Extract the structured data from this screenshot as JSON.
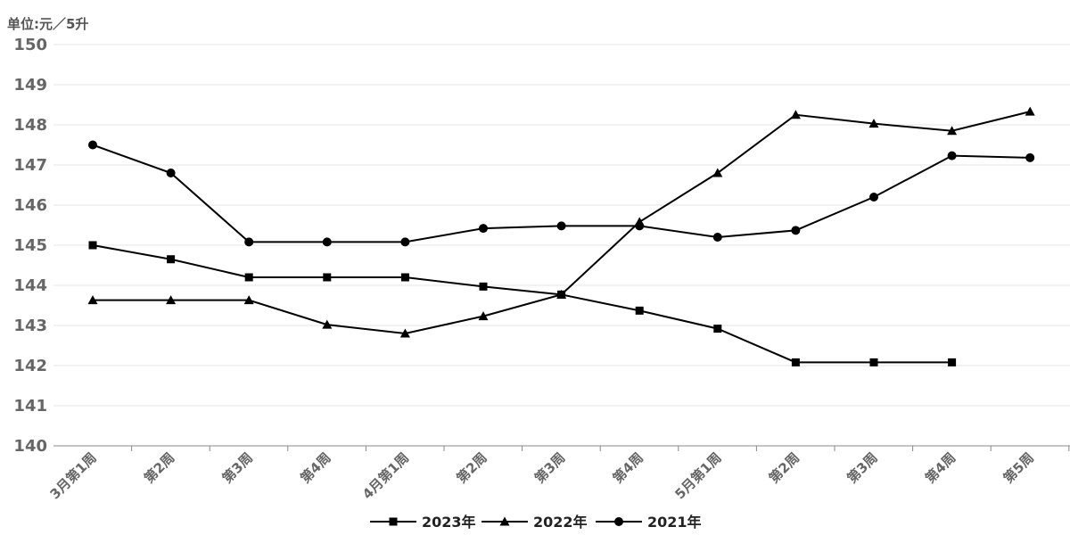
{
  "chart_data": {
    "type": "line",
    "unit_label": "单位:元／5升",
    "categories": [
      "3月第1周",
      "第2周",
      "第3周",
      "第4周",
      "4月第1周",
      "第2周",
      "第3周",
      "第4周",
      "5月第1周",
      "第2周",
      "第3周",
      "第4周",
      "第5周"
    ],
    "y_ticks": [
      "140",
      "141",
      "142",
      "143",
      "144",
      "145",
      "146",
      "147",
      "148",
      "149",
      "150"
    ],
    "ylim": [
      140,
      150
    ],
    "grid": true,
    "legend_position": "bottom",
    "series": [
      {
        "name": "2023年",
        "marker": "square",
        "color": "#000000",
        "values": [
          145.0,
          144.65,
          144.2,
          144.2,
          144.2,
          143.97,
          143.77,
          143.37,
          142.92,
          142.08,
          142.08,
          142.08,
          null
        ]
      },
      {
        "name": "2022年",
        "marker": "triangle",
        "color": "#000000",
        "values": [
          143.63,
          143.63,
          143.63,
          143.02,
          142.8,
          143.23,
          143.77,
          145.58,
          146.8,
          148.25,
          148.03,
          147.85,
          148.33
        ]
      },
      {
        "name": "2021年",
        "marker": "circle",
        "color": "#000000",
        "values": [
          147.5,
          146.8,
          145.08,
          145.08,
          145.08,
          145.42,
          145.48,
          145.48,
          145.2,
          145.37,
          146.2,
          147.23,
          147.18
        ]
      }
    ]
  }
}
